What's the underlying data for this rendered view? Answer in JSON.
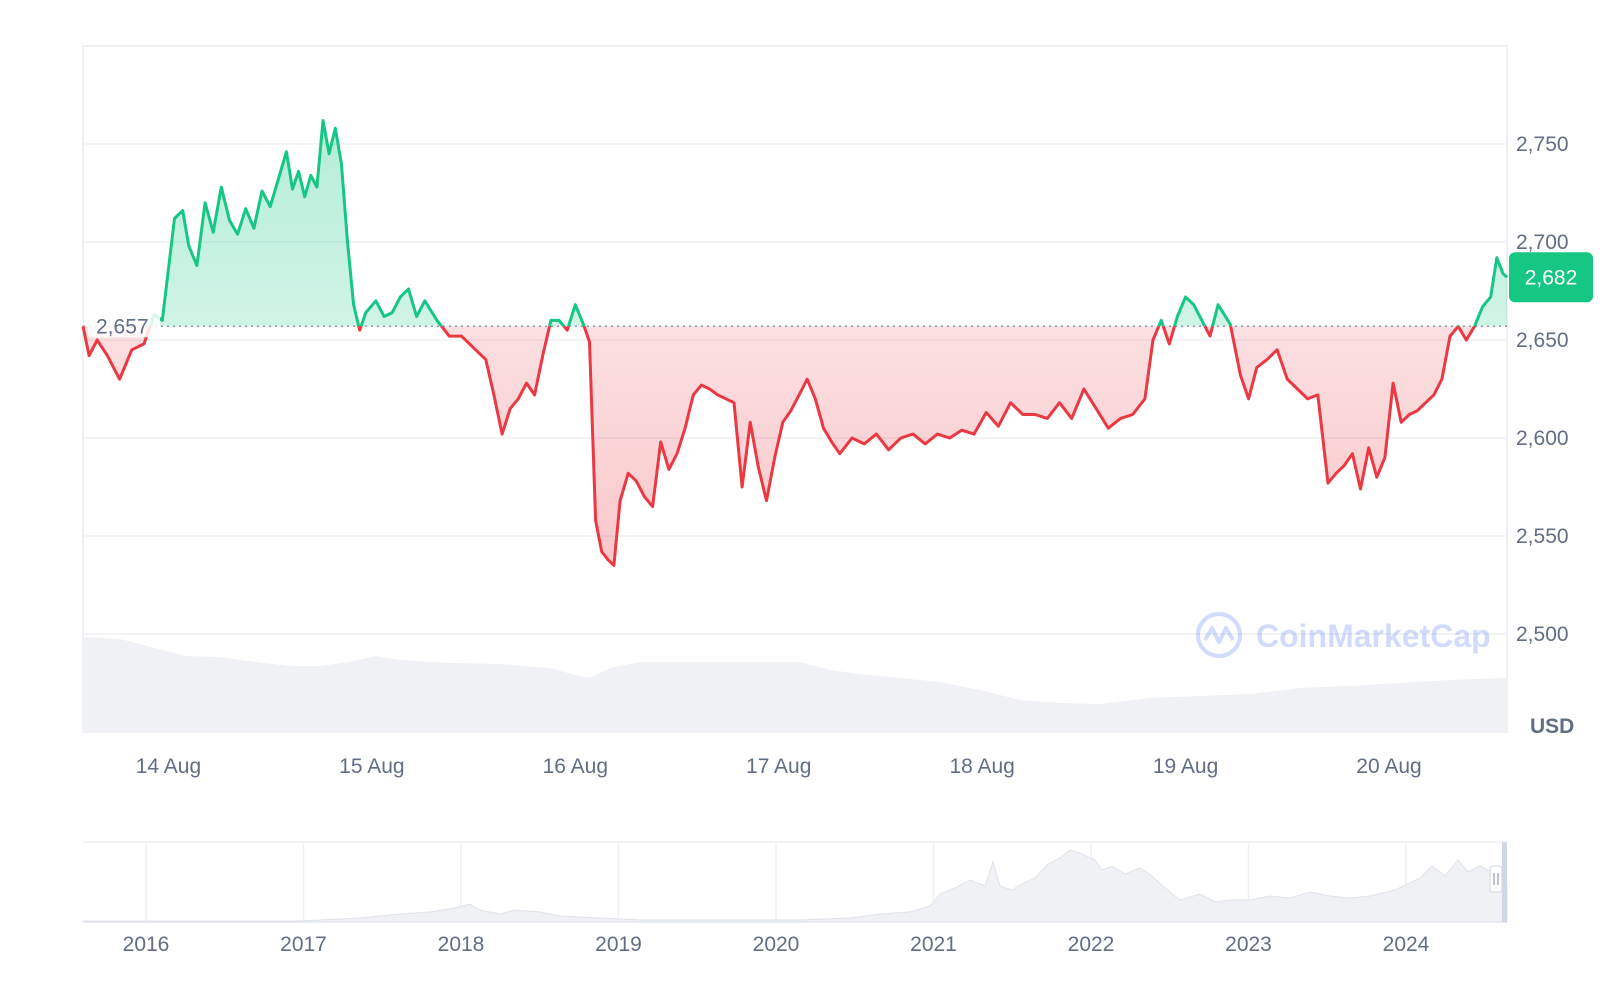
{
  "chart_data": {
    "type": "area",
    "currency_label": "USD",
    "watermark": "CoinMarketCap",
    "baseline": {
      "value": 2657,
      "label": "2,657"
    },
    "current": {
      "value": 2682,
      "label": "2,682"
    },
    "y_ticks": [
      {
        "value": 2500,
        "label": "2,500"
      },
      {
        "value": 2550,
        "label": "2,550"
      },
      {
        "value": 2600,
        "label": "2,600"
      },
      {
        "value": 2650,
        "label": "2,650"
      },
      {
        "value": 2700,
        "label": "2,700"
      },
      {
        "value": 2750,
        "label": "2,750"
      }
    ],
    "ylim": [
      2450,
      2800
    ],
    "xlim": [
      13.58,
      20.58
    ],
    "x_ticks": [
      {
        "value": 14,
        "label": "14 Aug"
      },
      {
        "value": 15,
        "label": "15 Aug"
      },
      {
        "value": 16,
        "label": "16 Aug"
      },
      {
        "value": 17,
        "label": "17 Aug"
      },
      {
        "value": 18,
        "label": "18 Aug"
      },
      {
        "value": 19,
        "label": "19 Aug"
      },
      {
        "value": 20,
        "label": "20 Aug"
      }
    ],
    "series": [
      {
        "points": [
          [
            13.58,
            2657
          ],
          [
            13.61,
            2642
          ],
          [
            13.65,
            2650
          ],
          [
            13.7,
            2642
          ],
          [
            13.76,
            2630
          ],
          [
            13.82,
            2645
          ],
          [
            13.88,
            2648
          ],
          [
            13.93,
            2663
          ],
          [
            13.97,
            2660
          ],
          [
            14.03,
            2712
          ],
          [
            14.07,
            2716
          ],
          [
            14.1,
            2698
          ],
          [
            14.14,
            2688
          ],
          [
            14.18,
            2720
          ],
          [
            14.22,
            2705
          ],
          [
            14.26,
            2728
          ],
          [
            14.3,
            2711
          ],
          [
            14.34,
            2704
          ],
          [
            14.38,
            2717
          ],
          [
            14.42,
            2707
          ],
          [
            14.46,
            2726
          ],
          [
            14.5,
            2718
          ],
          [
            14.54,
            2732
          ],
          [
            14.58,
            2746
          ],
          [
            14.61,
            2727
          ],
          [
            14.64,
            2736
          ],
          [
            14.67,
            2723
          ],
          [
            14.7,
            2734
          ],
          [
            14.73,
            2728
          ],
          [
            14.76,
            2762
          ],
          [
            14.79,
            2745
          ],
          [
            14.82,
            2758
          ],
          [
            14.85,
            2740
          ],
          [
            14.88,
            2700
          ],
          [
            14.91,
            2668
          ],
          [
            14.94,
            2655
          ],
          [
            14.97,
            2664
          ],
          [
            15.02,
            2670
          ],
          [
            15.06,
            2662
          ],
          [
            15.1,
            2664
          ],
          [
            15.14,
            2672
          ],
          [
            15.18,
            2676
          ],
          [
            15.22,
            2662
          ],
          [
            15.26,
            2670
          ],
          [
            15.32,
            2660
          ],
          [
            15.38,
            2652
          ],
          [
            15.44,
            2652
          ],
          [
            15.5,
            2646
          ],
          [
            15.56,
            2640
          ],
          [
            15.6,
            2622
          ],
          [
            15.64,
            2602
          ],
          [
            15.68,
            2615
          ],
          [
            15.72,
            2620
          ],
          [
            15.76,
            2628
          ],
          [
            15.8,
            2622
          ],
          [
            15.84,
            2642
          ],
          [
            15.88,
            2660
          ],
          [
            15.92,
            2660
          ],
          [
            15.96,
            2655
          ],
          [
            16.0,
            2668
          ],
          [
            16.04,
            2658
          ],
          [
            16.07,
            2649
          ],
          [
            16.1,
            2558
          ],
          [
            16.13,
            2542
          ],
          [
            16.16,
            2538
          ],
          [
            16.19,
            2535
          ],
          [
            16.22,
            2568
          ],
          [
            16.26,
            2582
          ],
          [
            16.3,
            2578
          ],
          [
            16.34,
            2570
          ],
          [
            16.38,
            2565
          ],
          [
            16.42,
            2598
          ],
          [
            16.46,
            2584
          ],
          [
            16.5,
            2592
          ],
          [
            16.54,
            2605
          ],
          [
            16.58,
            2622
          ],
          [
            16.62,
            2627
          ],
          [
            16.66,
            2625
          ],
          [
            16.7,
            2622
          ],
          [
            16.74,
            2620
          ],
          [
            16.78,
            2618
          ],
          [
            16.82,
            2575
          ],
          [
            16.86,
            2608
          ],
          [
            16.9,
            2585
          ],
          [
            16.94,
            2568
          ],
          [
            16.98,
            2590
          ],
          [
            17.02,
            2608
          ],
          [
            17.06,
            2614
          ],
          [
            17.1,
            2622
          ],
          [
            17.14,
            2630
          ],
          [
            17.18,
            2620
          ],
          [
            17.22,
            2605
          ],
          [
            17.26,
            2598
          ],
          [
            17.3,
            2592
          ],
          [
            17.36,
            2600
          ],
          [
            17.42,
            2597
          ],
          [
            17.48,
            2602
          ],
          [
            17.54,
            2594
          ],
          [
            17.6,
            2600
          ],
          [
            17.66,
            2602
          ],
          [
            17.72,
            2597
          ],
          [
            17.78,
            2602
          ],
          [
            17.84,
            2600
          ],
          [
            17.9,
            2604
          ],
          [
            17.96,
            2602
          ],
          [
            18.02,
            2613
          ],
          [
            18.08,
            2606
          ],
          [
            18.14,
            2618
          ],
          [
            18.2,
            2612
          ],
          [
            18.26,
            2612
          ],
          [
            18.32,
            2610
          ],
          [
            18.38,
            2618
          ],
          [
            18.44,
            2610
          ],
          [
            18.5,
            2625
          ],
          [
            18.56,
            2615
          ],
          [
            18.62,
            2605
          ],
          [
            18.68,
            2610
          ],
          [
            18.74,
            2612
          ],
          [
            18.8,
            2620
          ],
          [
            18.84,
            2650
          ],
          [
            18.88,
            2660
          ],
          [
            18.92,
            2648
          ],
          [
            18.96,
            2662
          ],
          [
            19.0,
            2672
          ],
          [
            19.04,
            2668
          ],
          [
            19.08,
            2660
          ],
          [
            19.12,
            2652
          ],
          [
            19.16,
            2668
          ],
          [
            19.22,
            2658
          ],
          [
            19.27,
            2632
          ],
          [
            19.31,
            2620
          ],
          [
            19.35,
            2636
          ],
          [
            19.4,
            2640
          ],
          [
            19.45,
            2645
          ],
          [
            19.5,
            2630
          ],
          [
            19.55,
            2625
          ],
          [
            19.6,
            2620
          ],
          [
            19.65,
            2622
          ],
          [
            19.7,
            2577
          ],
          [
            19.74,
            2582
          ],
          [
            19.78,
            2586
          ],
          [
            19.82,
            2592
          ],
          [
            19.86,
            2574
          ],
          [
            19.9,
            2595
          ],
          [
            19.94,
            2580
          ],
          [
            19.98,
            2590
          ],
          [
            20.02,
            2628
          ],
          [
            20.06,
            2608
          ],
          [
            20.1,
            2612
          ],
          [
            20.14,
            2614
          ],
          [
            20.18,
            2618
          ],
          [
            20.22,
            2622
          ],
          [
            20.26,
            2630
          ],
          [
            20.3,
            2652
          ],
          [
            20.34,
            2657
          ],
          [
            20.38,
            2650
          ],
          [
            20.42,
            2657
          ],
          [
            20.46,
            2667
          ],
          [
            20.5,
            2672
          ],
          [
            20.53,
            2692
          ],
          [
            20.56,
            2684
          ],
          [
            20.58,
            2682
          ]
        ]
      }
    ]
  },
  "overview": {
    "year_ticks": [
      "2016",
      "2017",
      "2018",
      "2019",
      "2020",
      "2021",
      "2022",
      "2023",
      "2024"
    ]
  }
}
